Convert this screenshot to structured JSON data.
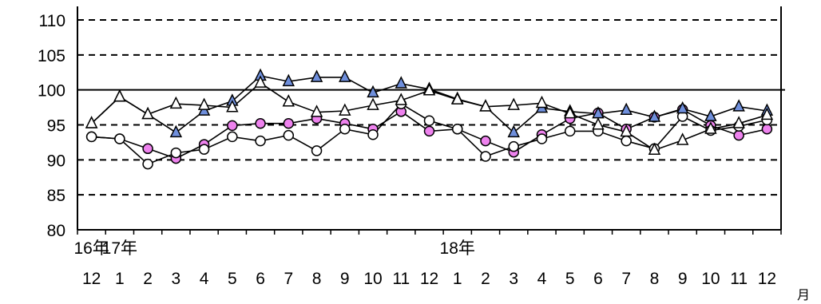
{
  "chart_data": {
    "type": "line",
    "x_labels": [
      "12",
      "1",
      "2",
      "3",
      "4",
      "5",
      "6",
      "7",
      "8",
      "9",
      "10",
      "11",
      "12",
      "1",
      "2",
      "3",
      "4",
      "5",
      "6",
      "7",
      "8",
      "9",
      "10",
      "11",
      "12"
    ],
    "year_labels": [
      {
        "text": "16年",
        "index": 0
      },
      {
        "text": "17年",
        "index": 1
      },
      {
        "text": "18年",
        "index": 13
      }
    ],
    "x_unit": "月",
    "yticks": [
      80,
      85,
      90,
      95,
      100,
      105,
      110
    ],
    "ylim": [
      80,
      110
    ],
    "grid": "dashed horizontal",
    "reference_line": 100,
    "series": [
      {
        "marker": "triangle",
        "fill": "#6f8fdc",
        "values": [
          95.2,
          99.0,
          96.5,
          93.9,
          97.0,
          98.4,
          102.0,
          101.2,
          101.8,
          101.8,
          99.6,
          100.9,
          100.1,
          98.7,
          97.6,
          93.9,
          97.4,
          96.9,
          96.6,
          97.1,
          96.1,
          97.3,
          96.2,
          97.6,
          97.0
        ]
      },
      {
        "marker": "triangle",
        "fill": "#ffffff",
        "values": [
          95.2,
          99.0,
          96.5,
          98.0,
          97.8,
          97.5,
          101.0,
          98.3,
          96.8,
          97.0,
          97.8,
          98.5,
          99.9,
          98.6,
          97.6,
          97.8,
          98.1,
          96.6,
          95.0,
          94.0,
          91.4,
          92.8,
          94.4,
          95.2,
          96.4
        ]
      },
      {
        "marker": "circle",
        "fill": "#ee82ee",
        "values": [
          93.3,
          93.0,
          91.6,
          90.2,
          92.2,
          94.9,
          95.2,
          95.2,
          95.9,
          95.2,
          94.4,
          96.9,
          94.1,
          94.4,
          92.7,
          91.1,
          93.6,
          95.9,
          96.7,
          94.4,
          96.1,
          97.2,
          94.9,
          93.5,
          94.4
        ]
      },
      {
        "marker": "circle",
        "fill": "#ffffff",
        "values": [
          93.3,
          93.0,
          89.4,
          91.0,
          91.5,
          93.3,
          92.7,
          93.5,
          91.3,
          94.4,
          93.6,
          98.0,
          95.6,
          94.4,
          90.5,
          91.9,
          93.0,
          94.1,
          94.1,
          92.7,
          91.6,
          96.2,
          94.2,
          94.8,
          95.7
        ]
      }
    ]
  }
}
